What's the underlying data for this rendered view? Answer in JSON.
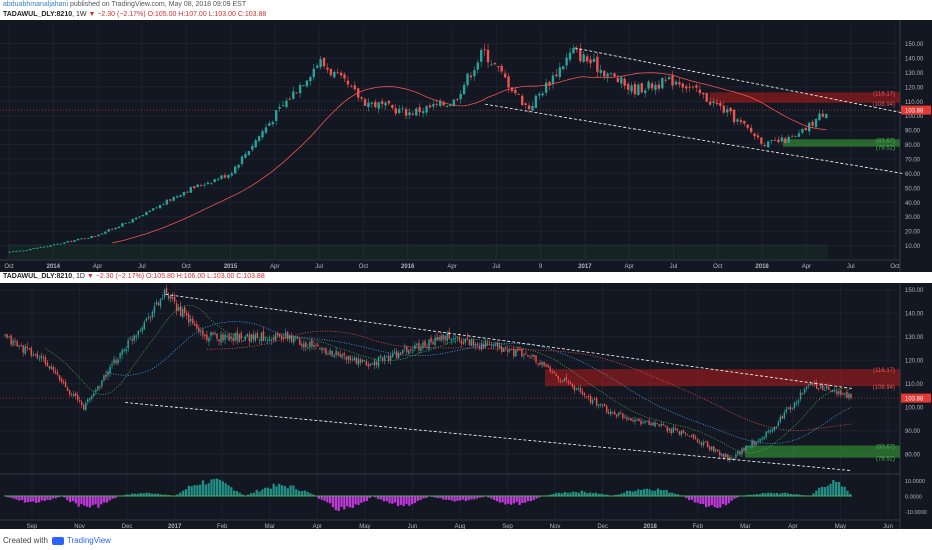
{
  "header": {
    "author": "abduabhmanaljahani",
    "published": " published on TradingView.com, May 08, 2018 09:09 EST"
  },
  "chart_data": [
    {
      "type": "candlestick",
      "symbol_line": {
        "symbol": "TADAWUL_DLY:8210",
        "interval": "1W",
        "arrow": "▼",
        "change": "−2.30 (−2.17%)",
        "ohlc": "O:105.00 H:107.00 L:103.00 C:103.88"
      },
      "interval": "weekly",
      "price_axis_ticks": [
        "10.00",
        "20.00",
        "30.00",
        "40.00",
        "50.00",
        "60.00",
        "70.00",
        "80.00",
        "90.00",
        "100.00",
        "110.00",
        "120.00",
        "130.00",
        "140.00",
        "150.00"
      ],
      "time_axis_ticks": [
        "Oct",
        "2014",
        "Apr",
        "Jul",
        "Oct",
        "2015",
        "Apr",
        "Jul",
        "Oct",
        "2016",
        "Apr",
        "Jul",
        "9",
        "2017",
        "Apr",
        "Jul",
        "Oct",
        "2018",
        "Apr",
        "Jul",
        "Oct"
      ],
      "ylim": [
        0,
        158
      ],
      "last_price_label": "103.88",
      "zones": [
        {
          "label_top": "(116.17)",
          "label_bottom": "(108.94)",
          "color": "#b71c1c"
        },
        {
          "label_top": "(83.67)",
          "label_bottom": "(78.52)",
          "color": "#2e7d32"
        }
      ],
      "approx_close_path": [
        {
          "x": "2013-10",
          "y": 5
        },
        {
          "x": "2014-01",
          "y": 10
        },
        {
          "x": "2014-04",
          "y": 17
        },
        {
          "x": "2014-07",
          "y": 30
        },
        {
          "x": "2014-10",
          "y": 48
        },
        {
          "x": "2015-01",
          "y": 60
        },
        {
          "x": "2015-04",
          "y": 100
        },
        {
          "x": "2015-07",
          "y": 138
        },
        {
          "x": "2015-10",
          "y": 110
        },
        {
          "x": "2016-01",
          "y": 102
        },
        {
          "x": "2016-04",
          "y": 110
        },
        {
          "x": "2016-06",
          "y": 145
        },
        {
          "x": "2016-09",
          "y": 105
        },
        {
          "x": "2016-12",
          "y": 145
        },
        {
          "x": "2017-04",
          "y": 118
        },
        {
          "x": "2017-07",
          "y": 125
        },
        {
          "x": "2017-10",
          "y": 105
        },
        {
          "x": "2018-01",
          "y": 80
        },
        {
          "x": "2018-03",
          "y": 85
        },
        {
          "x": "2018-05",
          "y": 104
        }
      ]
    },
    {
      "type": "candlestick",
      "symbol_line": {
        "symbol": "TADAWUL_DLY:8210",
        "interval": "1D",
        "arrow": "▼",
        "change": "−2.30 (−2.17%)",
        "ohlc": "O:105.80 H:106.00 L:103.00 C:103.88"
      },
      "interval": "daily",
      "price_axis_ticks": [
        "80.00",
        "90.00",
        "100.00",
        "110.00",
        "120.00",
        "130.00",
        "140.00",
        "150.00"
      ],
      "time_axis_ticks": [
        "Sep",
        "Nov",
        "Dec",
        "2017",
        "Feb",
        "Mar",
        "Apr",
        "May",
        "Jun",
        "Aug",
        "Sep",
        "Nov",
        "Dec",
        "2018",
        "Feb",
        "Mar",
        "Apr",
        "May",
        "Jun"
      ],
      "ylim": [
        72,
        152
      ],
      "last_price_label": "103.88",
      "zones": [
        {
          "label_top": "(116.17)",
          "label_bottom": "(108.94)",
          "color": "#b71c1c"
        },
        {
          "label_top": "(83.67)",
          "label_bottom": "(78.52)",
          "color": "#2e7d32"
        }
      ],
      "approx_close_path": [
        {
          "x": "2016-08",
          "y": 130
        },
        {
          "x": "2016-09",
          "y": 120
        },
        {
          "x": "2016-10",
          "y": 100
        },
        {
          "x": "2016-11",
          "y": 125
        },
        {
          "x": "2016-12",
          "y": 148
        },
        {
          "x": "2017-01",
          "y": 130
        },
        {
          "x": "2017-03",
          "y": 130
        },
        {
          "x": "2017-05",
          "y": 118
        },
        {
          "x": "2017-07",
          "y": 130
        },
        {
          "x": "2017-09",
          "y": 122
        },
        {
          "x": "2017-11",
          "y": 98
        },
        {
          "x": "2018-01",
          "y": 88
        },
        {
          "x": "2018-02",
          "y": 78
        },
        {
          "x": "2018-03",
          "y": 90
        },
        {
          "x": "2018-04",
          "y": 110
        },
        {
          "x": "2018-05",
          "y": 104
        }
      ]
    },
    {
      "type": "histogram",
      "indicator": "oscillator",
      "axis_ticks": [
        "10.0000",
        "0.0000",
        "-10.0000"
      ],
      "ylim": [
        -13,
        13
      ],
      "colors": {
        "positive": "#26a69a",
        "negative": "#e040fb"
      }
    }
  ],
  "footer": {
    "created_with": "Created with",
    "brand": "TradingView"
  },
  "colors": {
    "background": "#131722",
    "up_candle": "#26a69a",
    "down_candle": "#ef5350",
    "trendline": "#ffffff",
    "price_label": "#e53935"
  }
}
